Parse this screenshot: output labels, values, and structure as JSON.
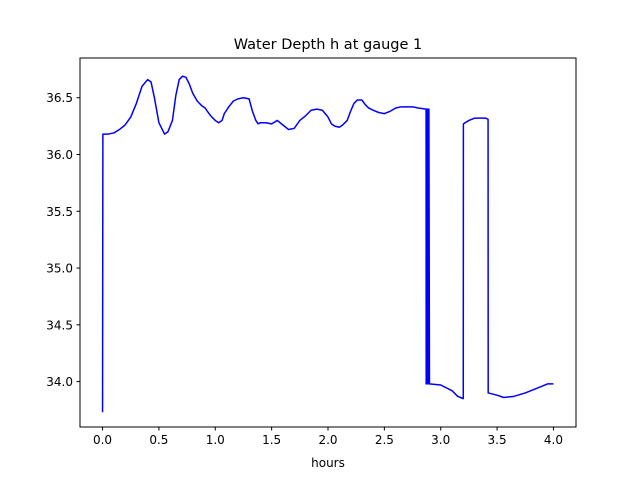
{
  "chart_data": {
    "type": "line",
    "title": "Water Depth h at gauge 1",
    "xlabel": "hours",
    "ylabel": "",
    "xlim": [
      -0.2,
      4.2
    ],
    "ylim": [
      33.6,
      36.85
    ],
    "xticks": [
      0.0,
      0.5,
      1.0,
      1.5,
      2.0,
      2.5,
      3.0,
      3.5,
      4.0
    ],
    "xtick_labels": [
      "0.0",
      "0.5",
      "1.0",
      "1.5",
      "2.0",
      "2.5",
      "3.0",
      "3.5",
      "4.0"
    ],
    "yticks": [
      34.0,
      34.5,
      35.0,
      35.5,
      36.0,
      36.5
    ],
    "ytick_labels": [
      "34.0",
      "34.5",
      "35.0",
      "35.5",
      "36.0",
      "36.5"
    ],
    "grid": false,
    "series": [
      {
        "color": "#0000ff",
        "x": [
          0.0,
          0.003,
          0.006,
          0.05,
          0.1,
          0.15,
          0.2,
          0.25,
          0.3,
          0.35,
          0.4,
          0.43,
          0.46,
          0.5,
          0.55,
          0.58,
          0.62,
          0.65,
          0.68,
          0.71,
          0.74,
          0.77,
          0.8,
          0.84,
          0.88,
          0.91,
          0.93,
          0.96,
          1.0,
          1.03,
          1.06,
          1.08,
          1.12,
          1.16,
          1.2,
          1.25,
          1.3,
          1.33,
          1.36,
          1.38,
          1.4,
          1.45,
          1.5,
          1.55,
          1.6,
          1.65,
          1.7,
          1.75,
          1.8,
          1.85,
          1.9,
          1.95,
          2.0,
          2.03,
          2.06,
          2.1,
          2.13,
          2.17,
          2.2,
          2.23,
          2.26,
          2.3,
          2.33,
          2.36,
          2.4,
          2.45,
          2.5,
          2.55,
          2.6,
          2.65,
          2.7,
          2.75,
          2.8,
          2.87,
          2.871,
          2.875,
          2.88,
          2.885,
          2.89,
          2.895,
          2.9,
          3.0,
          3.1,
          3.15,
          3.2,
          3.201,
          3.25,
          3.3,
          3.35,
          3.4,
          3.42,
          3.421,
          3.5,
          3.56,
          3.65,
          3.75,
          3.85,
          3.95,
          4.0
        ],
        "y": [
          33.73,
          36.18,
          36.18,
          36.18,
          36.19,
          36.22,
          36.26,
          36.33,
          36.45,
          36.6,
          36.66,
          36.64,
          36.5,
          36.28,
          36.18,
          36.2,
          36.3,
          36.52,
          36.66,
          36.69,
          36.68,
          36.62,
          36.54,
          36.47,
          36.43,
          36.41,
          36.38,
          36.34,
          36.3,
          36.28,
          36.3,
          36.36,
          36.42,
          36.47,
          36.49,
          36.5,
          36.49,
          36.38,
          36.3,
          36.27,
          36.28,
          36.28,
          36.27,
          36.3,
          36.26,
          36.22,
          36.23,
          36.3,
          36.34,
          36.39,
          36.4,
          36.39,
          36.33,
          36.27,
          36.25,
          36.24,
          36.26,
          36.3,
          36.38,
          36.45,
          36.48,
          36.48,
          36.44,
          36.41,
          36.39,
          36.37,
          36.36,
          36.38,
          36.41,
          36.42,
          36.42,
          36.42,
          36.41,
          36.4,
          33.98,
          36.4,
          33.98,
          36.4,
          33.98,
          36.4,
          33.98,
          33.97,
          33.92,
          33.87,
          33.85,
          36.27,
          36.3,
          36.32,
          36.32,
          36.32,
          36.31,
          33.9,
          33.88,
          33.86,
          33.87,
          33.9,
          33.94,
          33.98,
          33.98
        ]
      }
    ]
  }
}
